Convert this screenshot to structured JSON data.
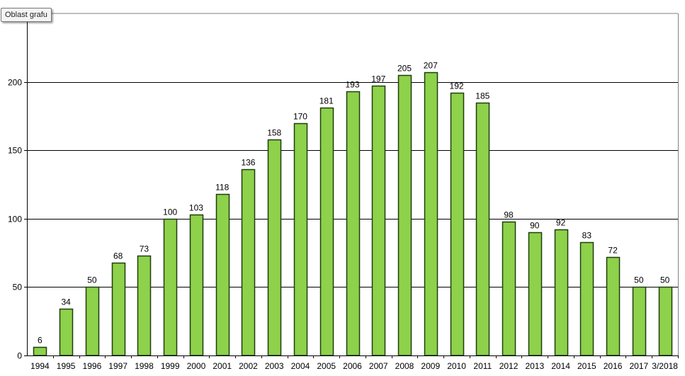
{
  "tooltip": {
    "label": "Oblast grafu"
  },
  "chart_data": {
    "type": "bar",
    "categories": [
      "1994",
      "1995",
      "1996",
      "1997",
      "1998",
      "1999",
      "2000",
      "2001",
      "2002",
      "2003",
      "2004",
      "2005",
      "2006",
      "2007",
      "2008",
      "2009",
      "2010",
      "2011",
      "2012",
      "2013",
      "2014",
      "2015",
      "2016",
      "2017",
      "3/2018"
    ],
    "values": [
      6,
      34,
      50,
      68,
      73,
      100,
      103,
      118,
      136,
      158,
      170,
      181,
      193,
      197,
      205,
      207,
      192,
      185,
      98,
      90,
      92,
      83,
      72,
      50,
      50
    ],
    "ylim": [
      0,
      250
    ],
    "yticks": [
      0,
      50,
      100,
      150,
      200
    ],
    "grid": true,
    "legend": "none",
    "title": "",
    "xlabel": "",
    "ylabel": "",
    "colors": {
      "bar_fill": "#8ed14b",
      "bar_stroke": "#1f3d0c",
      "grid": "#000000"
    }
  }
}
